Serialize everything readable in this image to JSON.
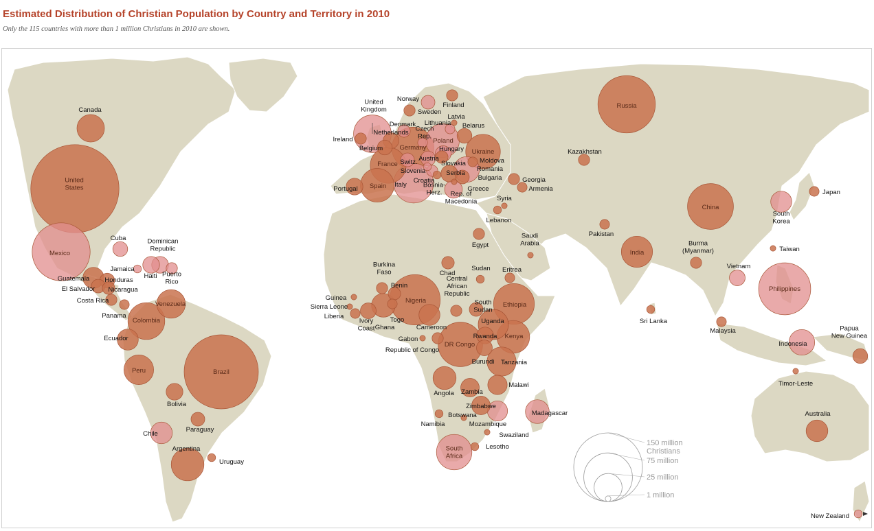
{
  "header": {
    "title": "Estimated Distribution of Christian Population by Country and Territory in 2010",
    "subtitle": "Only the 115 countries with more than 1 million Christians in 2010 are shown."
  },
  "colors": {
    "land": "#dcd8c3",
    "ocean": "#ffffff",
    "bubble": "#c9734f",
    "bubble_light": "#e28e8e",
    "title": "#b5432a"
  },
  "legend": {
    "items": [
      {
        "label": "150 million",
        "sublabel": "Christians",
        "value_millions": 150
      },
      {
        "label": "75 million",
        "value_millions": 75
      },
      {
        "label": "25 million",
        "value_millions": 25
      },
      {
        "label": "1 million",
        "value_millions": 1
      }
    ]
  },
  "countries": [
    {
      "name": "Canada",
      "millions": 24
    },
    {
      "name": "United States",
      "millions": 247
    },
    {
      "name": "Mexico",
      "millions": 107
    },
    {
      "name": "Cuba",
      "millions": 7
    },
    {
      "name": "Dominican Republic",
      "millions": 9
    },
    {
      "name": "Jamaica",
      "millions": 2
    },
    {
      "name": "Haiti",
      "millions": 9
    },
    {
      "name": "Puerto Rico",
      "millions": 4
    },
    {
      "name": "Guatemala",
      "millions": 14
    },
    {
      "name": "Honduras",
      "millions": 7
    },
    {
      "name": "El Salvador",
      "millions": 6
    },
    {
      "name": "Nicaragua",
      "millions": 5
    },
    {
      "name": "Costa Rica",
      "millions": 4
    },
    {
      "name": "Panama",
      "millions": 3
    },
    {
      "name": "Venezuela",
      "millions": 26
    },
    {
      "name": "Colombia",
      "millions": 43
    },
    {
      "name": "Ecuador",
      "millions": 14
    },
    {
      "name": "Peru",
      "millions": 28
    },
    {
      "name": "Brazil",
      "millions": 175
    },
    {
      "name": "Bolivia",
      "millions": 9
    },
    {
      "name": "Paraguay",
      "millions": 6
    },
    {
      "name": "Chile",
      "millions": 15
    },
    {
      "name": "Argentina",
      "millions": 34
    },
    {
      "name": "Uruguay",
      "millions": 2
    },
    {
      "name": "United Kingdom",
      "millions": 45
    },
    {
      "name": "Ireland",
      "millions": 4
    },
    {
      "name": "Netherlands",
      "millions": 8
    },
    {
      "name": "Belgium",
      "millions": 7
    },
    {
      "name": "Denmark",
      "millions": 5
    },
    {
      "name": "Norway",
      "millions": 4
    },
    {
      "name": "Sweden",
      "millions": 6
    },
    {
      "name": "Finland",
      "millions": 4
    },
    {
      "name": "Latvia",
      "millions": 1
    },
    {
      "name": "Lithuania",
      "millions": 3
    },
    {
      "name": "Belarus",
      "millions": 7
    },
    {
      "name": "Czech Rep.",
      "millions": 3
    },
    {
      "name": "Poland",
      "millions": 36
    },
    {
      "name": "Germany",
      "millions": 56
    },
    {
      "name": "Hungary",
      "millions": 8
    },
    {
      "name": "Slovakia",
      "millions": 5
    },
    {
      "name": "Austria",
      "millions": 7
    },
    {
      "name": "Switz.",
      "millions": 6
    },
    {
      "name": "France",
      "millions": 41
    },
    {
      "name": "Slovenia",
      "millions": 2
    },
    {
      "name": "Croatia",
      "millions": 4
    },
    {
      "name": "Bosnia-Herz.",
      "millions": 2
    },
    {
      "name": "Serbia",
      "millions": 9
    },
    {
      "name": "Italy",
      "millions": 50
    },
    {
      "name": "Greece",
      "millions": 10
    },
    {
      "name": "Rep. of Macedonia",
      "millions": 1
    },
    {
      "name": "Bulgaria",
      "millions": 6
    },
    {
      "name": "Romania",
      "millions": 21
    },
    {
      "name": "Moldova",
      "millions": 3
    },
    {
      "name": "Ukraine",
      "millions": 38
    },
    {
      "name": "Portugal",
      "millions": 9
    },
    {
      "name": "Spain",
      "millions": 36
    },
    {
      "name": "Russia",
      "millions": 105
    },
    {
      "name": "Georgia",
      "millions": 4
    },
    {
      "name": "Armenia",
      "millions": 3
    },
    {
      "name": "Kazakhstan",
      "millions": 4
    },
    {
      "name": "Syria",
      "millions": 1
    },
    {
      "name": "Lebanon",
      "millions": 2
    },
    {
      "name": "Egypt",
      "millions": 4
    },
    {
      "name": "Saudi Arabia",
      "millions": 1
    },
    {
      "name": "Pakistan",
      "millions": 3
    },
    {
      "name": "India",
      "millions": 31
    },
    {
      "name": "Sri Lanka",
      "millions": 2
    },
    {
      "name": "China",
      "millions": 67
    },
    {
      "name": "South Korea",
      "millions": 14
    },
    {
      "name": "Japan",
      "millions": 3
    },
    {
      "name": "Taiwan",
      "millions": 1
    },
    {
      "name": "Burma (Myanmar)",
      "millions": 4
    },
    {
      "name": "Vietnam",
      "millions": 8
    },
    {
      "name": "Philippines",
      "millions": 86
    },
    {
      "name": "Malaysia",
      "millions": 3
    },
    {
      "name": "Indonesia",
      "millions": 21
    },
    {
      "name": "Timor-Leste",
      "millions": 1
    },
    {
      "name": "Papua New Guinea",
      "millions": 7
    },
    {
      "name": "Australia",
      "millions": 15
    },
    {
      "name": "New Zealand",
      "millions": 2
    },
    {
      "name": "Chad",
      "millions": 5
    },
    {
      "name": "Sudan",
      "millions": 2
    },
    {
      "name": "Eritrea",
      "millions": 3
    },
    {
      "name": "Burkina Faso",
      "millions": 4
    },
    {
      "name": "Benin",
      "millions": 5
    },
    {
      "name": "Nigeria",
      "millions": 81
    },
    {
      "name": "Central African Republic",
      "millions": 4
    },
    {
      "name": "South Sudan",
      "millions": 6
    },
    {
      "name": "Ethiopia",
      "millions": 53
    },
    {
      "name": "Guinea",
      "millions": 1
    },
    {
      "name": "Sierra Leone",
      "millions": 1
    },
    {
      "name": "Liberia",
      "millions": 3
    },
    {
      "name": "Ivory Coast",
      "millions": 8
    },
    {
      "name": "Ghana",
      "millions": 18
    },
    {
      "name": "Togo",
      "millions": 3
    },
    {
      "name": "Cameroon",
      "millions": 14
    },
    {
      "name": "Uganda",
      "millions": 29
    },
    {
      "name": "Kenya",
      "millions": 34
    },
    {
      "name": "Gabon",
      "millions": 1
    },
    {
      "name": "Republic of Congo",
      "millions": 4
    },
    {
      "name": "DR Congo",
      "millions": 63
    },
    {
      "name": "Rwanda",
      "millions": 9
    },
    {
      "name": "Burundi",
      "millions": 8
    },
    {
      "name": "Tanzania",
      "millions": 27
    },
    {
      "name": "Angola",
      "millions": 17
    },
    {
      "name": "Zambia",
      "millions": 11
    },
    {
      "name": "Malawi",
      "millions": 12
    },
    {
      "name": "Zimbabwe",
      "millions": 11
    },
    {
      "name": "Mozambique",
      "millions": 13
    },
    {
      "name": "Madagascar",
      "millions": 18
    },
    {
      "name": "Namibia",
      "millions": 2
    },
    {
      "name": "Botswana",
      "millions": 1
    },
    {
      "name": "Swaziland",
      "millions": 1
    },
    {
      "name": "Lesotho",
      "millions": 2
    },
    {
      "name": "South Africa",
      "millions": 40
    }
  ]
}
